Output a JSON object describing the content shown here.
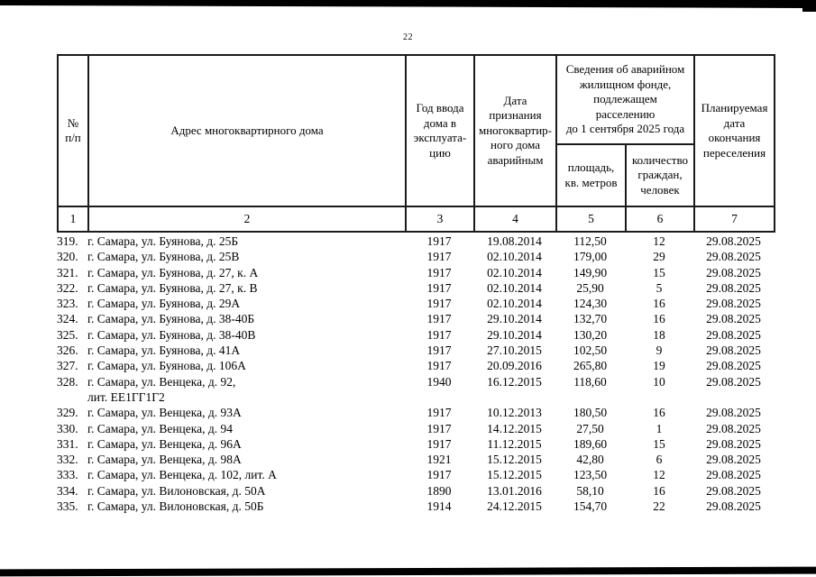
{
  "page_number": "22",
  "colors": {
    "text": "#000000",
    "background": "#ffffff",
    "table_border": "#1b1b1b",
    "scan_bar": "#000000"
  },
  "table": {
    "header": {
      "col_num": "№\nп/п",
      "col_address": "Адрес многоквартирного дома",
      "col_year": "Год ввода\nдома в\nэксплуата-\nцию",
      "col_date_recognized": "Дата\nпризнания\nмногоквартир-\nного дома\nаварийным",
      "group_info": "Сведения об аварийном\nжилищном фонде,\nподлежащем\nрасселению\nдо 1 сентября 2025 года",
      "col_area": "площадь,\nкв. метров",
      "col_citizens": "количество\nграждан,\nчеловек",
      "col_planned": "Планируемая\nдата\nокончания\nпереселения",
      "index_row": [
        "1",
        "2",
        "3",
        "4",
        "5",
        "6",
        "7"
      ]
    },
    "rows": [
      {
        "num": "319.",
        "address": "г. Самара, ул. Буянова, д. 25Б",
        "year": "1917",
        "date": "19.08.2014",
        "area": "112,50",
        "citizens": "12",
        "planned": "29.08.2025"
      },
      {
        "num": "320.",
        "address": "г. Самара, ул. Буянова, д. 25В",
        "year": "1917",
        "date": "02.10.2014",
        "area": "179,00",
        "citizens": "29",
        "planned": "29.08.2025"
      },
      {
        "num": "321.",
        "address": "г. Самара, ул. Буянова, д. 27, к. А",
        "year": "1917",
        "date": "02.10.2014",
        "area": "149,90",
        "citizens": "15",
        "planned": "29.08.2025"
      },
      {
        "num": "322.",
        "address": "г. Самара, ул. Буянова, д. 27, к. В",
        "year": "1917",
        "date": "02.10.2014",
        "area": "25,90",
        "citizens": "5",
        "planned": "29.08.2025"
      },
      {
        "num": "323.",
        "address": "г. Самара, ул. Буянова, д. 29А",
        "year": "1917",
        "date": "02.10.2014",
        "area": "124,30",
        "citizens": "16",
        "planned": "29.08.2025"
      },
      {
        "num": "324.",
        "address": "г. Самара, ул. Буянова, д. 38-40Б",
        "year": "1917",
        "date": "29.10.2014",
        "area": "132,70",
        "citizens": "16",
        "planned": "29.08.2025"
      },
      {
        "num": "325.",
        "address": "г. Самара, ул. Буянова, д. 38-40В",
        "year": "1917",
        "date": "29.10.2014",
        "area": "130,20",
        "citizens": "18",
        "planned": "29.08.2025"
      },
      {
        "num": "326.",
        "address": "г. Самара, ул. Буянова, д. 41А",
        "year": "1917",
        "date": "27.10.2015",
        "area": "102,50",
        "citizens": "9",
        "planned": "29.08.2025"
      },
      {
        "num": "327.",
        "address": "г. Самара, ул. Буянова, д. 106А",
        "year": "1917",
        "date": "20.09.2016",
        "area": "265,80",
        "citizens": "19",
        "planned": "29.08.2025"
      },
      {
        "num": "328.",
        "address": "г. Самара, ул. Венцека, д. 92,\nлит. ЕЕ1ГГ1Г2",
        "year": "1940",
        "date": "16.12.2015",
        "area": "118,60",
        "citizens": "10",
        "planned": "29.08.2025"
      },
      {
        "num": "329.",
        "address": "г. Самара, ул. Венцека, д. 93А",
        "year": "1917",
        "date": "10.12.2013",
        "area": "180,50",
        "citizens": "16",
        "planned": "29.08.2025"
      },
      {
        "num": "330.",
        "address": "г. Самара, ул. Венцека, д. 94",
        "year": "1917",
        "date": "14.12.2015",
        "area": "27,50",
        "citizens": "1",
        "planned": "29.08.2025"
      },
      {
        "num": "331.",
        "address": "г. Самара, ул. Венцека, д. 96А",
        "year": "1917",
        "date": "11.12.2015",
        "area": "189,60",
        "citizens": "15",
        "planned": "29.08.2025"
      },
      {
        "num": "332.",
        "address": "г. Самара, ул. Венцека, д. 98А",
        "year": "1921",
        "date": "15.12.2015",
        "area": "42,80",
        "citizens": "6",
        "planned": "29.08.2025"
      },
      {
        "num": "333.",
        "address": "г. Самара, ул. Венцека, д. 102, лит. А",
        "year": "1917",
        "date": "15.12.2015",
        "area": "123,50",
        "citizens": "12",
        "planned": "29.08.2025"
      },
      {
        "num": "334.",
        "address": "г. Самара, ул. Вилоновская, д. 50А",
        "year": "1890",
        "date": "13.01.2016",
        "area": "58,10",
        "citizens": "16",
        "planned": "29.08.2025"
      },
      {
        "num": "335.",
        "address": "г. Самара, ул. Вилоновская, д. 50Б",
        "year": "1914",
        "date": "24.12.2015",
        "area": "154,70",
        "citizens": "22",
        "planned": "29.08.2025"
      }
    ]
  }
}
